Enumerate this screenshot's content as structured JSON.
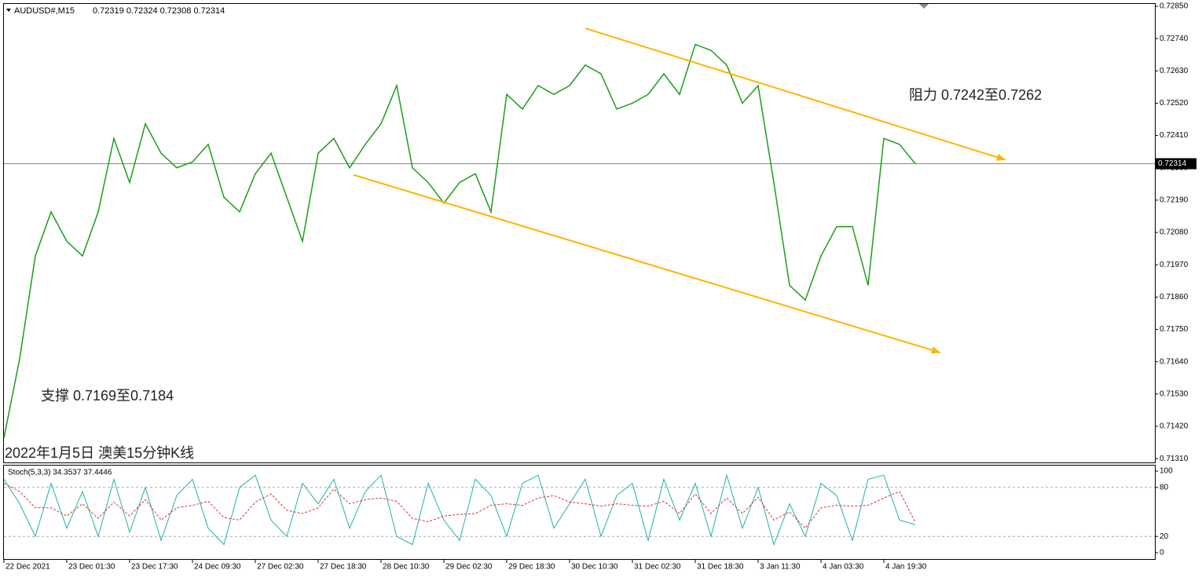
{
  "chart_data": [
    {
      "type": "line",
      "symbol": "AUDUSD#,M15",
      "ohlc": "0.72319 0.72324 0.72308 0.72314",
      "annotations": [
        "阻力 0.7242至0.7262",
        "支撑 0.7169至0.7184",
        "2022年1月5日 澳美15分钟K线"
      ],
      "x": [
        0,
        1,
        2,
        3,
        4,
        5,
        6,
        7,
        8,
        9,
        10,
        11,
        12,
        13,
        14,
        15,
        16,
        17,
        18,
        19,
        20,
        21,
        22,
        23,
        24,
        25,
        26,
        27,
        28,
        29,
        30,
        31,
        32,
        33,
        34,
        35,
        36,
        37,
        38,
        39,
        40,
        41,
        42,
        43,
        44,
        45,
        46,
        47,
        48,
        49,
        50,
        51,
        52,
        53,
        54,
        55,
        56,
        57,
        58
      ],
      "series": [
        {
          "name": "AUDUSD#,M15",
          "color": "#1a9e1a",
          "values": [
            0.7138,
            0.7165,
            0.72,
            0.7215,
            0.7205,
            0.72,
            0.7215,
            0.724,
            0.7225,
            0.7245,
            0.7235,
            0.723,
            0.7232,
            0.7238,
            0.722,
            0.7215,
            0.7228,
            0.7235,
            0.722,
            0.7205,
            0.7235,
            0.724,
            0.723,
            0.7238,
            0.7245,
            0.7258,
            0.723,
            0.7225,
            0.7218,
            0.7225,
            0.7228,
            0.7215,
            0.7255,
            0.725,
            0.7258,
            0.7255,
            0.7258,
            0.7265,
            0.7262,
            0.725,
            0.7252,
            0.7255,
            0.7262,
            0.7255,
            0.7272,
            0.727,
            0.7265,
            0.7252,
            0.7258,
            0.7225,
            0.719,
            0.7185,
            0.72,
            0.721,
            0.721,
            0.719,
            0.724,
            0.7238,
            0.72314
          ]
        }
      ],
      "trendlines": [
        {
          "x": [
            37,
            63.75
          ],
          "y": [
            0.72775,
            0.72327
          ],
          "color": "#ffb300"
        },
        {
          "x": [
            22.25,
            59.6
          ],
          "y": [
            0.72276,
            0.71671
          ],
          "color": "#ffb300"
        }
      ],
      "current_price": {
        "value": 0.72314,
        "label": "0.72314"
      },
      "xlim": [
        0,
        73.25
      ],
      "xticks": [
        {
          "value": 0,
          "label": "22 Dec 2021"
        },
        {
          "value": 4,
          "label": "23 Dec 01:30"
        },
        {
          "value": 8,
          "label": "23 Dec 17:30"
        },
        {
          "value": 12,
          "label": "24 Dec 09:30"
        },
        {
          "value": 16,
          "label": "27 Dec 02:30"
        },
        {
          "value": 20,
          "label": "27 Dec 18:30"
        },
        {
          "value": 24,
          "label": "28 Dec 10:30"
        },
        {
          "value": 28,
          "label": "29 Dec 02:30"
        },
        {
          "value": 32,
          "label": "29 Dec 18:30"
        },
        {
          "value": 36,
          "label": "30 Dec 10:30"
        },
        {
          "value": 40,
          "label": "31 Dec 02:30"
        },
        {
          "value": 44,
          "label": "31 Dec 18:30"
        },
        {
          "value": 48,
          "label": "3 Jan 11:30"
        },
        {
          "value": 52,
          "label": "4 Jan 03:30"
        },
        {
          "value": 56,
          "label": "4 Jan 19:30"
        }
      ],
      "ylim": [
        0.71297,
        0.72858
      ],
      "yticks": [
        {
          "value": 0.7285,
          "label": "0.72850"
        },
        {
          "value": 0.7274,
          "label": "0.72740"
        },
        {
          "value": 0.7263,
          "label": "0.72630"
        },
        {
          "value": 0.7252,
          "label": "0.72520"
        },
        {
          "value": 0.7241,
          "label": "0.72410"
        },
        {
          "value": 0.723,
          "label": "0.72300"
        },
        {
          "value": 0.7219,
          "label": "0.72190"
        },
        {
          "value": 0.7208,
          "label": "0.72080"
        },
        {
          "value": 0.7197,
          "label": "0.71970"
        },
        {
          "value": 0.7186,
          "label": "0.71860"
        },
        {
          "value": 0.7175,
          "label": "0.71750"
        },
        {
          "value": 0.7164,
          "label": "0.71640"
        },
        {
          "value": 0.7153,
          "label": "0.71530"
        },
        {
          "value": 0.7142,
          "label": "0.71420"
        },
        {
          "value": 0.7131,
          "label": "0.71310"
        }
      ]
    },
    {
      "type": "line",
      "title": "Stoch(5,3,3) 34.3537 37.4446",
      "x": [
        0,
        1,
        2,
        3,
        4,
        5,
        6,
        7,
        8,
        9,
        10,
        11,
        12,
        13,
        14,
        15,
        16,
        17,
        18,
        19,
        20,
        21,
        22,
        23,
        24,
        25,
        26,
        27,
        28,
        29,
        30,
        31,
        32,
        33,
        34,
        35,
        36,
        37,
        38,
        39,
        40,
        41,
        42,
        43,
        44,
        45,
        46,
        47,
        48,
        49,
        50,
        51,
        52,
        53,
        54,
        55,
        56,
        57,
        58
      ],
      "series": [
        {
          "color": "#20b2aa",
          "values": [
            90,
            60,
            20,
            85,
            30,
            75,
            20,
            90,
            25,
            80,
            15,
            70,
            90,
            30,
            10,
            80,
            95,
            40,
            20,
            85,
            60,
            90,
            30,
            75,
            95,
            20,
            10,
            85,
            40,
            15,
            90,
            70,
            20,
            85,
            95,
            30,
            60,
            90,
            20,
            70,
            85,
            15,
            90,
            40,
            85,
            20,
            95,
            30,
            80,
            10,
            60,
            20,
            85,
            70,
            15,
            90,
            95,
            40,
            34.3537
          ]
        },
        {
          "color": "#e03030",
          "dashed": true,
          "values": [
            85,
            75,
            55,
            55,
            45,
            60,
            42,
            62,
            45,
            65,
            40,
            55,
            58,
            63,
            43,
            40,
            62,
            72,
            52,
            48,
            55,
            78,
            60,
            65,
            67,
            63,
            42,
            38,
            45,
            47,
            48,
            58,
            60,
            58,
            67,
            70,
            62,
            60,
            57,
            60,
            58,
            57,
            63,
            48,
            72,
            48,
            67,
            48,
            68,
            40,
            50,
            30,
            55,
            58,
            57,
            58,
            67,
            75,
            37.4446
          ]
        }
      ],
      "xlim": [
        0,
        73.25
      ],
      "ylim": [
        0,
        100
      ],
      "yticks": [
        100,
        80,
        20,
        0
      ]
    }
  ]
}
